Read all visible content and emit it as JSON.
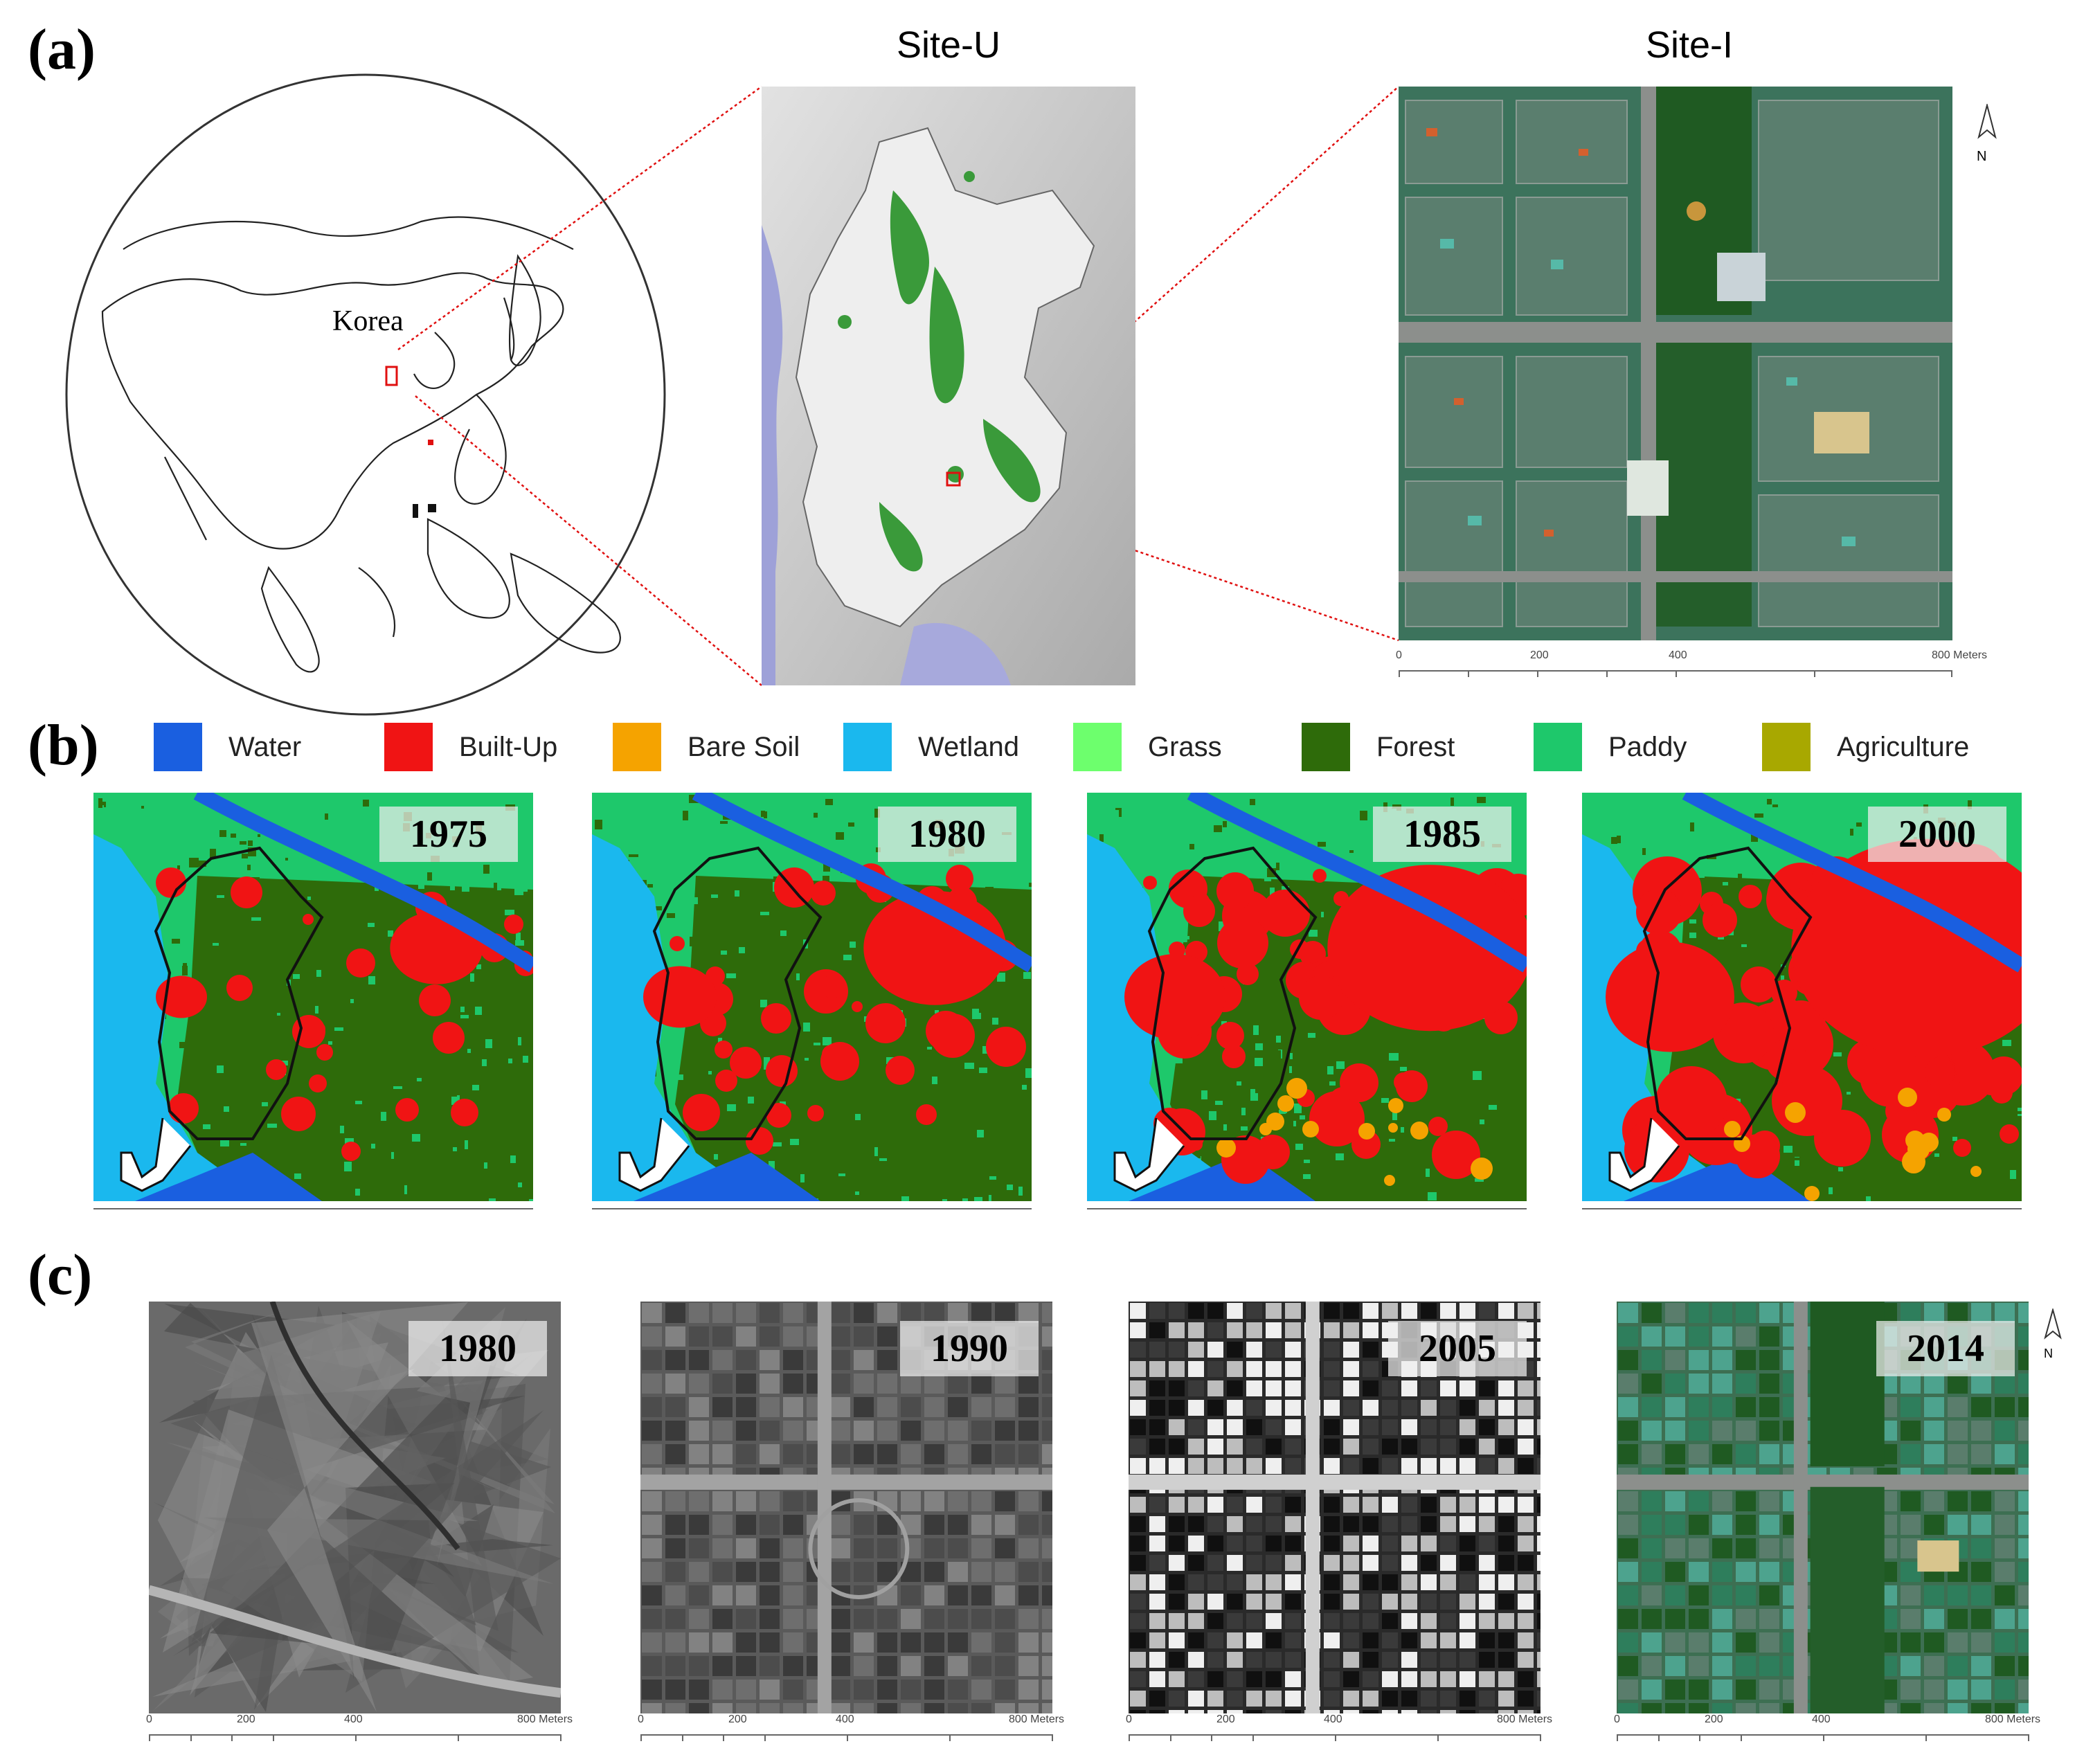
{
  "panels": {
    "a": {
      "label": "(a)",
      "korea_label": "Korea",
      "site_u_title": "Site-U",
      "site_i_title": "Site-I",
      "north_label": "N",
      "scale": {
        "labels": [
          "0",
          "200",
          "400",
          "800 Meters"
        ]
      }
    },
    "b": {
      "label": "(b)",
      "legend": [
        {
          "name": "Water",
          "color": "#1a5fe0"
        },
        {
          "name": "Built-Up",
          "color": "#f01414"
        },
        {
          "name": "Bare Soil",
          "color": "#f5a300"
        },
        {
          "name": "Wetland",
          "color": "#1ab8ee"
        },
        {
          "name": "Grass",
          "color": "#6dff6d"
        },
        {
          "name": "Forest",
          "color": "#2e6b0a"
        },
        {
          "name": "Paddy",
          "color": "#1ec86b"
        },
        {
          "name": "Agriculture",
          "color": "#a8a800"
        }
      ],
      "maps": [
        {
          "year": "1975",
          "builtup_level": 0.15
        },
        {
          "year": "1980",
          "builtup_level": 0.35
        },
        {
          "year": "1985",
          "builtup_level": 0.6
        },
        {
          "year": "2000",
          "builtup_level": 0.85
        }
      ]
    },
    "c": {
      "label": "(c)",
      "north_label": "N",
      "photos": [
        {
          "year": "1980",
          "style": "rural-grey"
        },
        {
          "year": "1990",
          "style": "grid-grey"
        },
        {
          "year": "2005",
          "style": "dense-bw"
        },
        {
          "year": "2014",
          "style": "color-city"
        }
      ],
      "scale": {
        "labels": [
          "0",
          "200",
          "400",
          "800 Meters"
        ]
      }
    }
  }
}
